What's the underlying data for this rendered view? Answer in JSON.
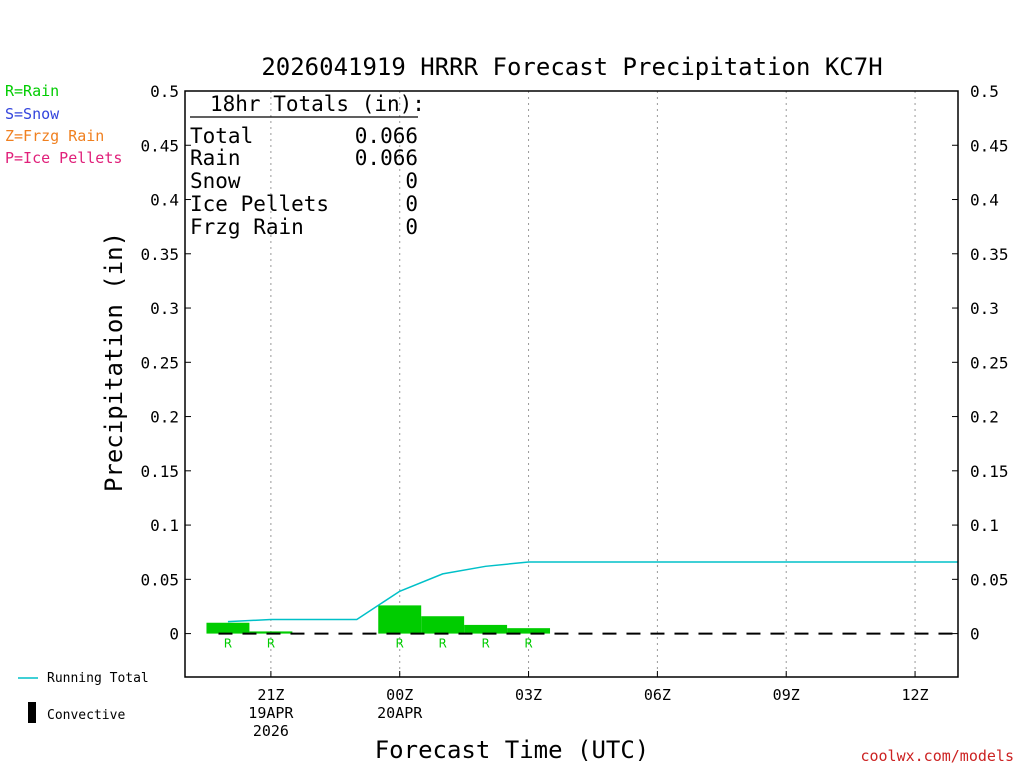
{
  "colors": {
    "rain": "#00cc00",
    "snow": "#3344dd",
    "frzg": "#f08020",
    "ice": "#e0207a",
    "running_total": "#00c0c8",
    "convective": "#000000",
    "credit": "#cc2222"
  },
  "legend_left": {
    "rain": "R=Rain",
    "snow": "S=Snow",
    "frzg": "Z=Frzg Rain",
    "ice": "P=Ice Pellets"
  },
  "legend_bottom": {
    "running_total": "Running Total",
    "convective": "Convective"
  },
  "credit": "coolwx.com/models",
  "totals_box": {
    "title": "18hr Totals (in):",
    "rows": [
      {
        "label": "Total",
        "value": "0.066"
      },
      {
        "label": "Rain",
        "value": "0.066"
      },
      {
        "label": "Snow",
        "value": "0"
      },
      {
        "label": "Ice Pellets",
        "value": "0"
      },
      {
        "label": "Frzg Rain",
        "value": "0"
      }
    ]
  },
  "chart_data": {
    "type": "bar",
    "title": "2026041919 HRRR Forecast Precipitation KC7H",
    "xlabel": "Forecast Time (UTC)",
    "ylabel": "Precipitation (in)",
    "ylim": [
      -0.04,
      0.5
    ],
    "yticks": [
      0,
      0.05,
      0.1,
      0.15,
      0.2,
      0.25,
      0.3,
      0.35,
      0.4,
      0.45,
      0.5
    ],
    "ytick_labels": [
      "0",
      "0.05",
      "0.1",
      "0.15",
      "0.2",
      "0.25",
      "0.3",
      "0.35",
      "0.4",
      "0.45",
      "0.5"
    ],
    "xlim_hours": [
      -2.0,
      16.0
    ],
    "xticks": [
      {
        "hour": 0,
        "lines": [
          "21Z",
          "19APR",
          "2026"
        ]
      },
      {
        "hour": 3,
        "lines": [
          "00Z",
          "20APR"
        ]
      },
      {
        "hour": 6,
        "lines": [
          "03Z"
        ]
      },
      {
        "hour": 9,
        "lines": [
          "06Z"
        ]
      },
      {
        "hour": 12,
        "lines": [
          "09Z"
        ]
      },
      {
        "hour": 15,
        "lines": [
          "12Z"
        ]
      }
    ],
    "grid": "vertical dotted",
    "bars": [
      {
        "hour": -1,
        "value": 0.01,
        "type": "R"
      },
      {
        "hour": 0,
        "value": 0.002,
        "type": "R"
      },
      {
        "hour": 1,
        "value": 0.0,
        "type": ""
      },
      {
        "hour": 2,
        "value": 0.0,
        "type": ""
      },
      {
        "hour": 3,
        "value": 0.026,
        "type": "R"
      },
      {
        "hour": 4,
        "value": 0.016,
        "type": "R"
      },
      {
        "hour": 5,
        "value": 0.008,
        "type": "R"
      },
      {
        "hour": 6,
        "value": 0.005,
        "type": "R"
      }
    ],
    "running_total": {
      "name": "Running Total",
      "x_hours": [
        -1,
        0,
        1,
        2,
        3,
        4,
        5,
        6,
        7,
        8,
        9,
        10,
        11,
        12,
        13,
        14,
        15,
        16
      ],
      "values": [
        0.011,
        0.013,
        0.013,
        0.013,
        0.039,
        0.055,
        0.062,
        0.066,
        0.066,
        0.066,
        0.066,
        0.066,
        0.066,
        0.066,
        0.066,
        0.066,
        0.066,
        0.066
      ]
    },
    "convective": [
      0,
      0,
      0,
      0,
      0,
      0,
      0,
      0,
      0,
      0,
      0,
      0,
      0,
      0,
      0,
      0,
      0,
      0
    ]
  }
}
